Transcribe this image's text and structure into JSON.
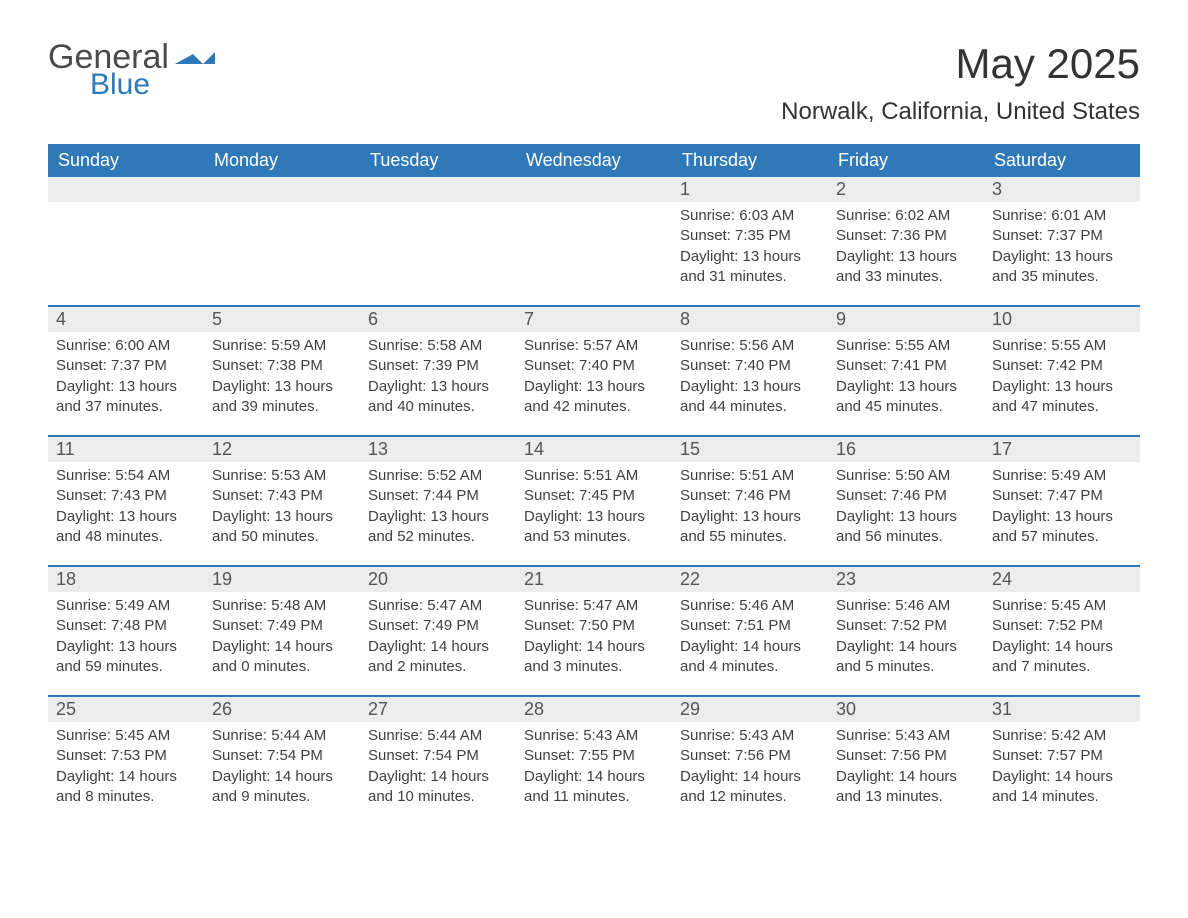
{
  "logo": {
    "word1": "General",
    "word2": "Blue",
    "icon_color": "#2f79b9"
  },
  "title": "May 2025",
  "location": "Norwalk, California, United States",
  "colors": {
    "header_bg": "#2f79b9",
    "header_text": "#ffffff",
    "daynum_bg": "#ececec",
    "daynum_text": "#555555",
    "body_text": "#404040",
    "rule": "#2f79b9"
  },
  "weekdays": [
    "Sunday",
    "Monday",
    "Tuesday",
    "Wednesday",
    "Thursday",
    "Friday",
    "Saturday"
  ],
  "weeks": [
    [
      {
        "n": "",
        "sr": "",
        "ss": "",
        "dl": ""
      },
      {
        "n": "",
        "sr": "",
        "ss": "",
        "dl": ""
      },
      {
        "n": "",
        "sr": "",
        "ss": "",
        "dl": ""
      },
      {
        "n": "",
        "sr": "",
        "ss": "",
        "dl": ""
      },
      {
        "n": "1",
        "sr": "Sunrise: 6:03 AM",
        "ss": "Sunset: 7:35 PM",
        "dl": "Daylight: 13 hours and 31 minutes."
      },
      {
        "n": "2",
        "sr": "Sunrise: 6:02 AM",
        "ss": "Sunset: 7:36 PM",
        "dl": "Daylight: 13 hours and 33 minutes."
      },
      {
        "n": "3",
        "sr": "Sunrise: 6:01 AM",
        "ss": "Sunset: 7:37 PM",
        "dl": "Daylight: 13 hours and 35 minutes."
      }
    ],
    [
      {
        "n": "4",
        "sr": "Sunrise: 6:00 AM",
        "ss": "Sunset: 7:37 PM",
        "dl": "Daylight: 13 hours and 37 minutes."
      },
      {
        "n": "5",
        "sr": "Sunrise: 5:59 AM",
        "ss": "Sunset: 7:38 PM",
        "dl": "Daylight: 13 hours and 39 minutes."
      },
      {
        "n": "6",
        "sr": "Sunrise: 5:58 AM",
        "ss": "Sunset: 7:39 PM",
        "dl": "Daylight: 13 hours and 40 minutes."
      },
      {
        "n": "7",
        "sr": "Sunrise: 5:57 AM",
        "ss": "Sunset: 7:40 PM",
        "dl": "Daylight: 13 hours and 42 minutes."
      },
      {
        "n": "8",
        "sr": "Sunrise: 5:56 AM",
        "ss": "Sunset: 7:40 PM",
        "dl": "Daylight: 13 hours and 44 minutes."
      },
      {
        "n": "9",
        "sr": "Sunrise: 5:55 AM",
        "ss": "Sunset: 7:41 PM",
        "dl": "Daylight: 13 hours and 45 minutes."
      },
      {
        "n": "10",
        "sr": "Sunrise: 5:55 AM",
        "ss": "Sunset: 7:42 PM",
        "dl": "Daylight: 13 hours and 47 minutes."
      }
    ],
    [
      {
        "n": "11",
        "sr": "Sunrise: 5:54 AM",
        "ss": "Sunset: 7:43 PM",
        "dl": "Daylight: 13 hours and 48 minutes."
      },
      {
        "n": "12",
        "sr": "Sunrise: 5:53 AM",
        "ss": "Sunset: 7:43 PM",
        "dl": "Daylight: 13 hours and 50 minutes."
      },
      {
        "n": "13",
        "sr": "Sunrise: 5:52 AM",
        "ss": "Sunset: 7:44 PM",
        "dl": "Daylight: 13 hours and 52 minutes."
      },
      {
        "n": "14",
        "sr": "Sunrise: 5:51 AM",
        "ss": "Sunset: 7:45 PM",
        "dl": "Daylight: 13 hours and 53 minutes."
      },
      {
        "n": "15",
        "sr": "Sunrise: 5:51 AM",
        "ss": "Sunset: 7:46 PM",
        "dl": "Daylight: 13 hours and 55 minutes."
      },
      {
        "n": "16",
        "sr": "Sunrise: 5:50 AM",
        "ss": "Sunset: 7:46 PM",
        "dl": "Daylight: 13 hours and 56 minutes."
      },
      {
        "n": "17",
        "sr": "Sunrise: 5:49 AM",
        "ss": "Sunset: 7:47 PM",
        "dl": "Daylight: 13 hours and 57 minutes."
      }
    ],
    [
      {
        "n": "18",
        "sr": "Sunrise: 5:49 AM",
        "ss": "Sunset: 7:48 PM",
        "dl": "Daylight: 13 hours and 59 minutes."
      },
      {
        "n": "19",
        "sr": "Sunrise: 5:48 AM",
        "ss": "Sunset: 7:49 PM",
        "dl": "Daylight: 14 hours and 0 minutes."
      },
      {
        "n": "20",
        "sr": "Sunrise: 5:47 AM",
        "ss": "Sunset: 7:49 PM",
        "dl": "Daylight: 14 hours and 2 minutes."
      },
      {
        "n": "21",
        "sr": "Sunrise: 5:47 AM",
        "ss": "Sunset: 7:50 PM",
        "dl": "Daylight: 14 hours and 3 minutes."
      },
      {
        "n": "22",
        "sr": "Sunrise: 5:46 AM",
        "ss": "Sunset: 7:51 PM",
        "dl": "Daylight: 14 hours and 4 minutes."
      },
      {
        "n": "23",
        "sr": "Sunrise: 5:46 AM",
        "ss": "Sunset: 7:52 PM",
        "dl": "Daylight: 14 hours and 5 minutes."
      },
      {
        "n": "24",
        "sr": "Sunrise: 5:45 AM",
        "ss": "Sunset: 7:52 PM",
        "dl": "Daylight: 14 hours and 7 minutes."
      }
    ],
    [
      {
        "n": "25",
        "sr": "Sunrise: 5:45 AM",
        "ss": "Sunset: 7:53 PM",
        "dl": "Daylight: 14 hours and 8 minutes."
      },
      {
        "n": "26",
        "sr": "Sunrise: 5:44 AM",
        "ss": "Sunset: 7:54 PM",
        "dl": "Daylight: 14 hours and 9 minutes."
      },
      {
        "n": "27",
        "sr": "Sunrise: 5:44 AM",
        "ss": "Sunset: 7:54 PM",
        "dl": "Daylight: 14 hours and 10 minutes."
      },
      {
        "n": "28",
        "sr": "Sunrise: 5:43 AM",
        "ss": "Sunset: 7:55 PM",
        "dl": "Daylight: 14 hours and 11 minutes."
      },
      {
        "n": "29",
        "sr": "Sunrise: 5:43 AM",
        "ss": "Sunset: 7:56 PM",
        "dl": "Daylight: 14 hours and 12 minutes."
      },
      {
        "n": "30",
        "sr": "Sunrise: 5:43 AM",
        "ss": "Sunset: 7:56 PM",
        "dl": "Daylight: 14 hours and 13 minutes."
      },
      {
        "n": "31",
        "sr": "Sunrise: 5:42 AM",
        "ss": "Sunset: 7:57 PM",
        "dl": "Daylight: 14 hours and 14 minutes."
      }
    ]
  ]
}
